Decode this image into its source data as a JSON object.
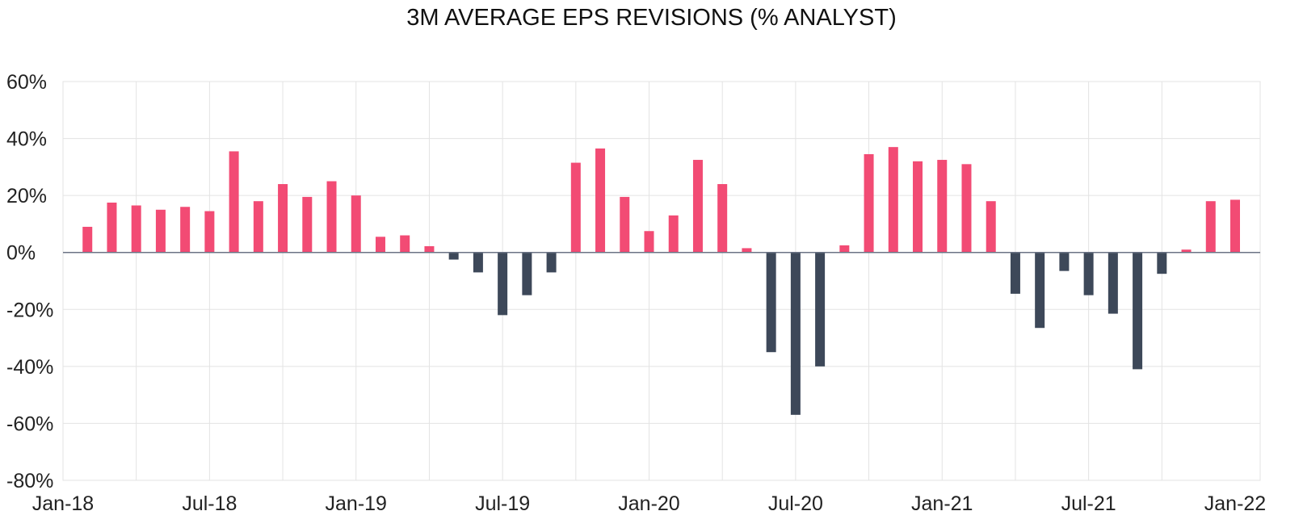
{
  "chart_data": {
    "type": "bar",
    "title": "3M AVERAGE EPS REVISIONS (% ANALYST)",
    "xlabel": "",
    "ylabel": "",
    "ylim": [
      -80,
      60
    ],
    "y_ticks": [
      60,
      40,
      20,
      0,
      -20,
      -40,
      -60,
      -80
    ],
    "y_tick_format": "%",
    "x_tick_labels": [
      "Jan-18",
      "Jul-18",
      "Jan-19",
      "Jul-19",
      "Jan-20",
      "Jul-20",
      "Jan-21",
      "Jul-21",
      "Jan-22"
    ],
    "grid": true,
    "legend": "none",
    "colors": {
      "positive": "#f24b74",
      "negative": "#3d4859",
      "grid": "#e3e3e3",
      "zero_line": "#6b7385"
    },
    "x_start": "2018-01",
    "x_end": "2022-01",
    "categories": [
      "Feb-18",
      "Mar-18",
      "Apr-18",
      "May-18",
      "Jun-18",
      "Jul-18",
      "Aug-18",
      "Sep-18",
      "Oct-18",
      "Nov-18",
      "Dec-18",
      "Jan-19",
      "Feb-19",
      "Mar-19",
      "Apr-19",
      "May-19",
      "Jun-19",
      "Jul-19",
      "Aug-19",
      "Sep-19",
      "Oct-19",
      "Nov-19",
      "Dec-19",
      "Jan-20",
      "Feb-20",
      "Mar-20",
      "Apr-20",
      "May-20",
      "Jun-20",
      "Jul-20",
      "Aug-20",
      "Sep-20",
      "Oct-20",
      "Nov-20",
      "Dec-20",
      "Jan-21",
      "Feb-21",
      "Mar-21",
      "Apr-21",
      "May-21",
      "Jun-21",
      "Jul-21",
      "Aug-21",
      "Sep-21",
      "Oct-21",
      "Nov-21",
      "Dec-21",
      "Jan-22"
    ],
    "values": [
      9,
      17.5,
      16.5,
      15,
      16,
      14.5,
      35.5,
      18,
      24,
      19.5,
      25,
      20,
      5.5,
      6,
      2.2,
      -2.5,
      -7,
      -22,
      -15,
      -7,
      31.5,
      36.5,
      19.5,
      7.5,
      13,
      32.5,
      24,
      1.5,
      -35,
      -57,
      -40,
      2.5,
      34.5,
      37,
      32,
      32.5,
      31,
      18,
      -14.5,
      -26.5,
      -6.5,
      -15,
      -21.5,
      -41,
      -7.5,
      1,
      18,
      18.5
    ]
  }
}
